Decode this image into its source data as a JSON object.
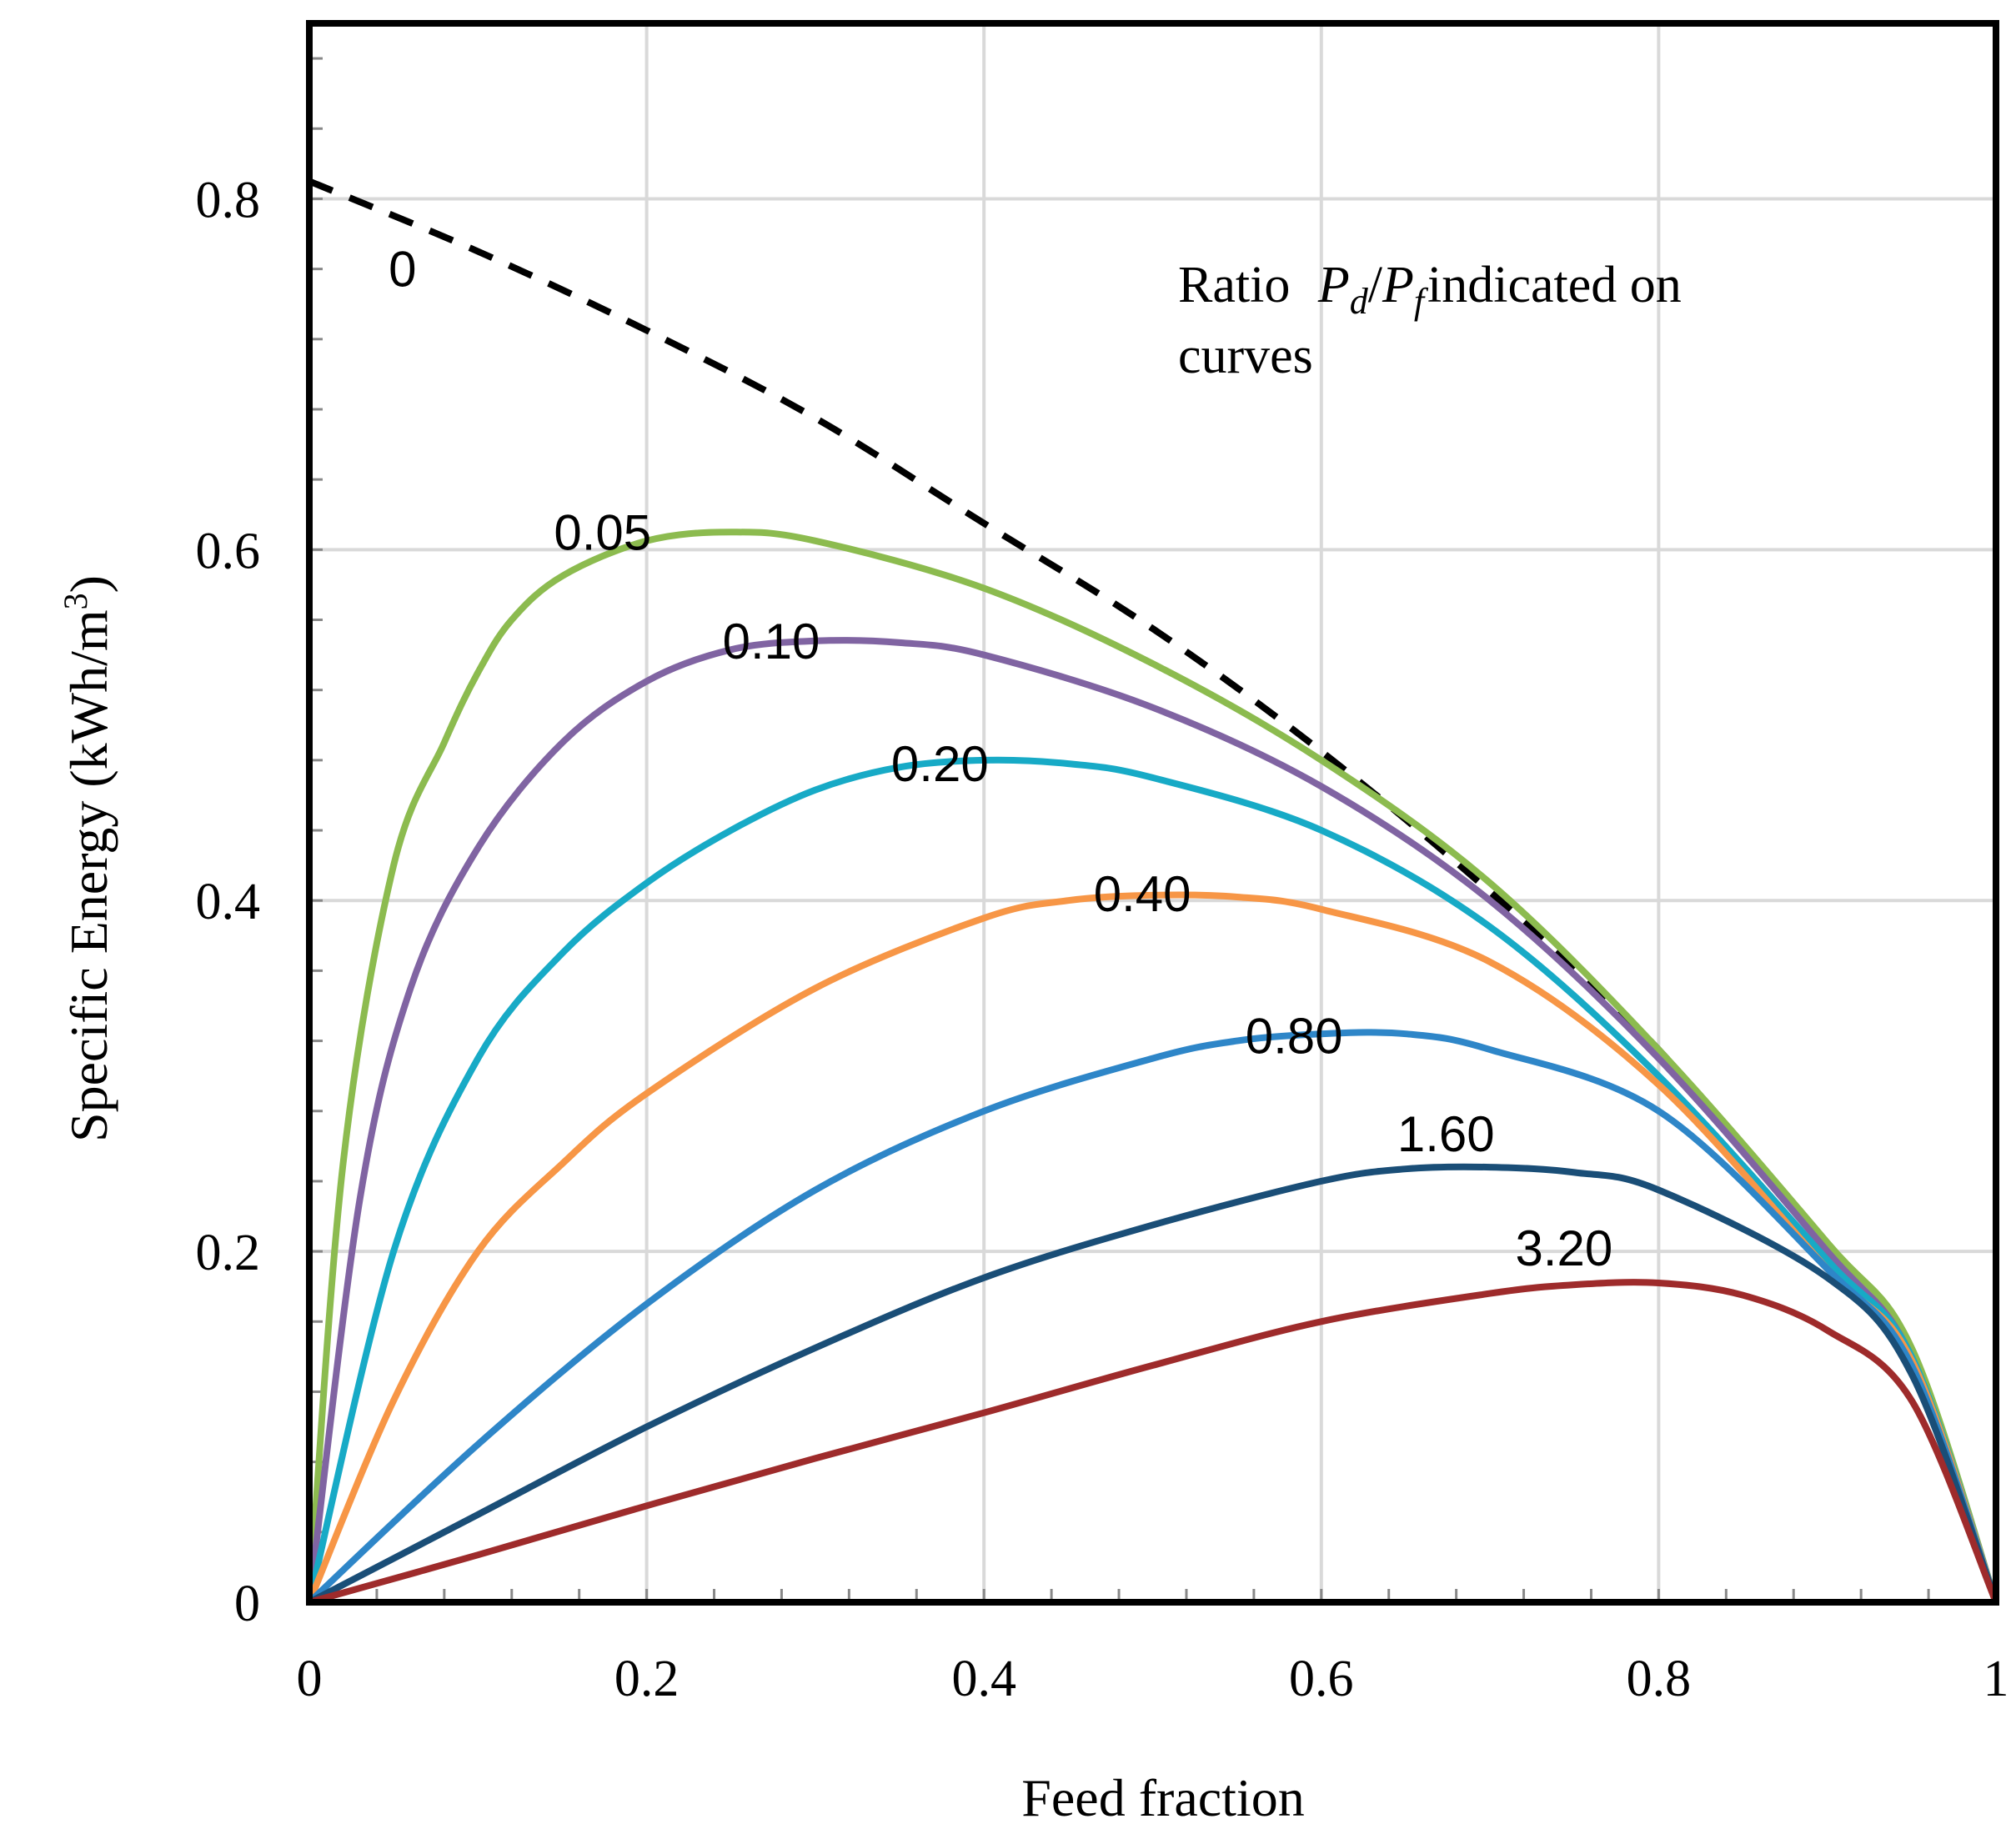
{
  "chart_data": {
    "type": "line",
    "title": "",
    "xlabel": "Feed fraction",
    "ylabel_main": "Specific  Energy  (kWh/m",
    "ylabel_sup": "3",
    "ylabel_end": ")",
    "xlim": [
      0,
      1
    ],
    "ylim": [
      0,
      0.9
    ],
    "x_ticks": [
      {
        "value": 0,
        "label": "0"
      },
      {
        "value": 0.2,
        "label": "0.2"
      },
      {
        "value": 0.4,
        "label": "0.4"
      },
      {
        "value": 0.6,
        "label": "0.6"
      },
      {
        "value": 0.8,
        "label": "0.8"
      },
      {
        "value": 1,
        "label": "1"
      }
    ],
    "y_ticks": [
      {
        "value": 0,
        "label": "0"
      },
      {
        "value": 0.2,
        "label": "0.2"
      },
      {
        "value": 0.4,
        "label": "0.4"
      },
      {
        "value": 0.6,
        "label": "0.6"
      },
      {
        "value": 0.8,
        "label": "0.8"
      }
    ],
    "x_minor_step": 0.04,
    "y_minor_step": 0.04,
    "grid": true,
    "annotation": {
      "line1_ratio": "Ratio",
      "pd_P": "P",
      "pd_sub": "d",
      "slash": "/",
      "pf_P": "P",
      "pf_sub": "f",
      "line1_rest": "indicated  on",
      "line2": "curves"
    },
    "series": [
      {
        "name": "0",
        "label": "0",
        "color": "#000000",
        "dashed": true,
        "label_x": 0.047,
        "label_y": 0.75,
        "x": [
          0,
          0.1,
          0.2,
          0.3,
          0.4,
          0.5,
          0.6,
          0.7,
          0.8,
          0.9,
          0.95,
          1.0
        ],
        "y": [
          0.81,
          0.77,
          0.725,
          0.675,
          0.615,
          0.555,
          0.485,
          0.405,
          0.315,
          0.2,
          0.14,
          0.0
        ]
      },
      {
        "name": "0.05",
        "label": "0.05",
        "color": "#8cbb4f",
        "dashed": false,
        "label_x": 0.145,
        "label_y": 0.6,
        "x": [
          0,
          0.02,
          0.05,
          0.08,
          0.1,
          0.12,
          0.15,
          0.2,
          0.25,
          0.3,
          0.4,
          0.5,
          0.6,
          0.7,
          0.8,
          0.9,
          0.95,
          1.0
        ],
        "y": [
          0,
          0.25,
          0.42,
          0.49,
          0.53,
          0.56,
          0.585,
          0.605,
          0.61,
          0.605,
          0.578,
          0.535,
          0.48,
          0.41,
          0.315,
          0.205,
          0.145,
          0
        ]
      },
      {
        "name": "0.10",
        "label": "0.10",
        "color": "#8064a2",
        "dashed": false,
        "label_x": 0.245,
        "label_y": 0.538,
        "x": [
          0,
          0.03,
          0.06,
          0.1,
          0.15,
          0.2,
          0.25,
          0.3,
          0.35,
          0.4,
          0.5,
          0.6,
          0.7,
          0.8,
          0.9,
          0.95,
          1.0
        ],
        "y": [
          0,
          0.23,
          0.35,
          0.43,
          0.49,
          0.525,
          0.543,
          0.548,
          0.547,
          0.54,
          0.51,
          0.465,
          0.4,
          0.31,
          0.2,
          0.14,
          0
        ]
      },
      {
        "name": "0.20",
        "label": "0.20",
        "color": "#17aac6",
        "dashed": false,
        "label_x": 0.345,
        "label_y": 0.468,
        "x": [
          0,
          0.05,
          0.1,
          0.15,
          0.2,
          0.25,
          0.3,
          0.35,
          0.4,
          0.45,
          0.5,
          0.6,
          0.7,
          0.8,
          0.9,
          0.95,
          1.0
        ],
        "y": [
          0,
          0.2,
          0.31,
          0.37,
          0.41,
          0.44,
          0.463,
          0.476,
          0.48,
          0.478,
          0.47,
          0.44,
          0.385,
          0.3,
          0.195,
          0.14,
          0
        ]
      },
      {
        "name": "0.40",
        "label": "0.40",
        "color": "#f79646",
        "dashed": false,
        "label_x": 0.465,
        "label_y": 0.394,
        "x": [
          0,
          0.05,
          0.1,
          0.15,
          0.2,
          0.3,
          0.4,
          0.45,
          0.5,
          0.55,
          0.6,
          0.7,
          0.8,
          0.9,
          0.95,
          1.0
        ],
        "y": [
          0,
          0.115,
          0.2,
          0.25,
          0.29,
          0.35,
          0.39,
          0.4,
          0.403,
          0.402,
          0.395,
          0.365,
          0.295,
          0.19,
          0.138,
          0
        ]
      },
      {
        "name": "0.80",
        "label": "0.80",
        "color": "#2e86c8",
        "dashed": false,
        "label_x": 0.555,
        "label_y": 0.313,
        "x": [
          0,
          0.1,
          0.2,
          0.3,
          0.4,
          0.5,
          0.55,
          0.6,
          0.65,
          0.7,
          0.8,
          0.9,
          0.95,
          1.0
        ],
        "y": [
          0,
          0.09,
          0.17,
          0.235,
          0.28,
          0.31,
          0.32,
          0.324,
          0.324,
          0.315,
          0.28,
          0.19,
          0.135,
          0
        ]
      },
      {
        "name": "1.60",
        "label": "1.60",
        "color": "#1a4e77",
        "dashed": false,
        "label_x": 0.645,
        "label_y": 0.257,
        "x": [
          0,
          0.1,
          0.2,
          0.3,
          0.4,
          0.5,
          0.6,
          0.65,
          0.7,
          0.75,
          0.8,
          0.9,
          0.95,
          1.0
        ],
        "y": [
          0,
          0.05,
          0.1,
          0.145,
          0.185,
          0.215,
          0.24,
          0.247,
          0.248,
          0.245,
          0.235,
          0.185,
          0.13,
          0
        ]
      },
      {
        "name": "3.20",
        "label": "3.20",
        "color": "#9e2b2b",
        "dashed": false,
        "label_x": 0.715,
        "label_y": 0.192,
        "x": [
          0,
          0.1,
          0.2,
          0.3,
          0.4,
          0.5,
          0.6,
          0.7,
          0.75,
          0.8,
          0.85,
          0.9,
          0.95,
          1.0
        ],
        "y": [
          0,
          0.027,
          0.055,
          0.082,
          0.108,
          0.135,
          0.16,
          0.176,
          0.181,
          0.182,
          0.175,
          0.155,
          0.115,
          0
        ]
      }
    ]
  }
}
